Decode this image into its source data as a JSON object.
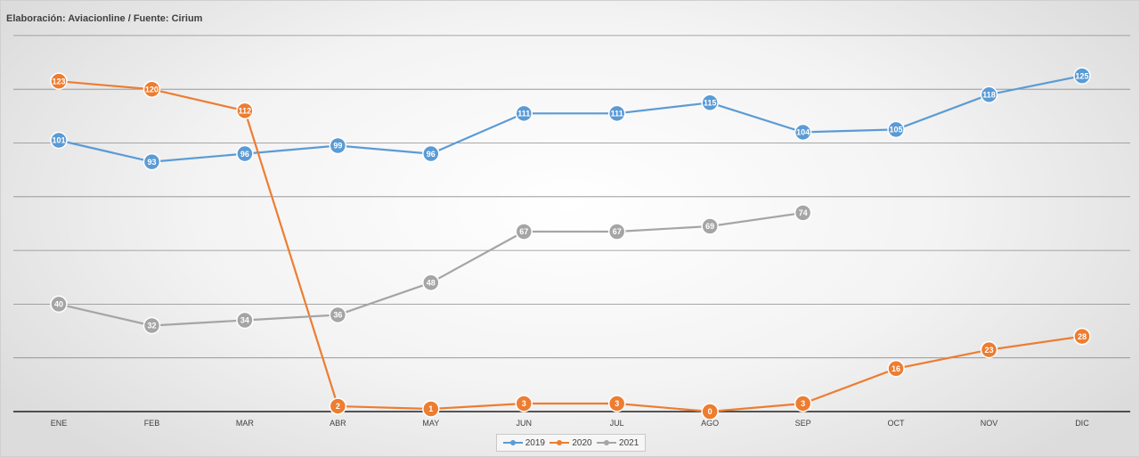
{
  "credit": "Elaboración: Aviacionline / Fuente: Cirium",
  "chart_data": {
    "type": "line",
    "categories": [
      "ENE",
      "FEB",
      "MAR",
      "ABR",
      "MAY",
      "JUN",
      "JUL",
      "AGO",
      "SEP",
      "OCT",
      "NOV",
      "DIC"
    ],
    "ylim": [
      0,
      140
    ],
    "grid": true,
    "gridlines": [
      20,
      40,
      60,
      80,
      100,
      120,
      140
    ],
    "legend_position": "bottom",
    "series": [
      {
        "name": "2019",
        "color": "#5b9bd5",
        "values": [
          101,
          93,
          96,
          99,
          96,
          111,
          111,
          115,
          104,
          105,
          118,
          125
        ]
      },
      {
        "name": "2020",
        "color": "#ed7d31",
        "values": [
          123,
          120,
          112,
          2,
          1,
          3,
          3,
          0,
          3,
          16,
          23,
          28
        ]
      },
      {
        "name": "2021",
        "color": "#a5a5a5",
        "values": [
          40,
          32,
          34,
          36,
          48,
          67,
          67,
          69,
          74,
          null,
          null,
          null
        ]
      }
    ]
  }
}
